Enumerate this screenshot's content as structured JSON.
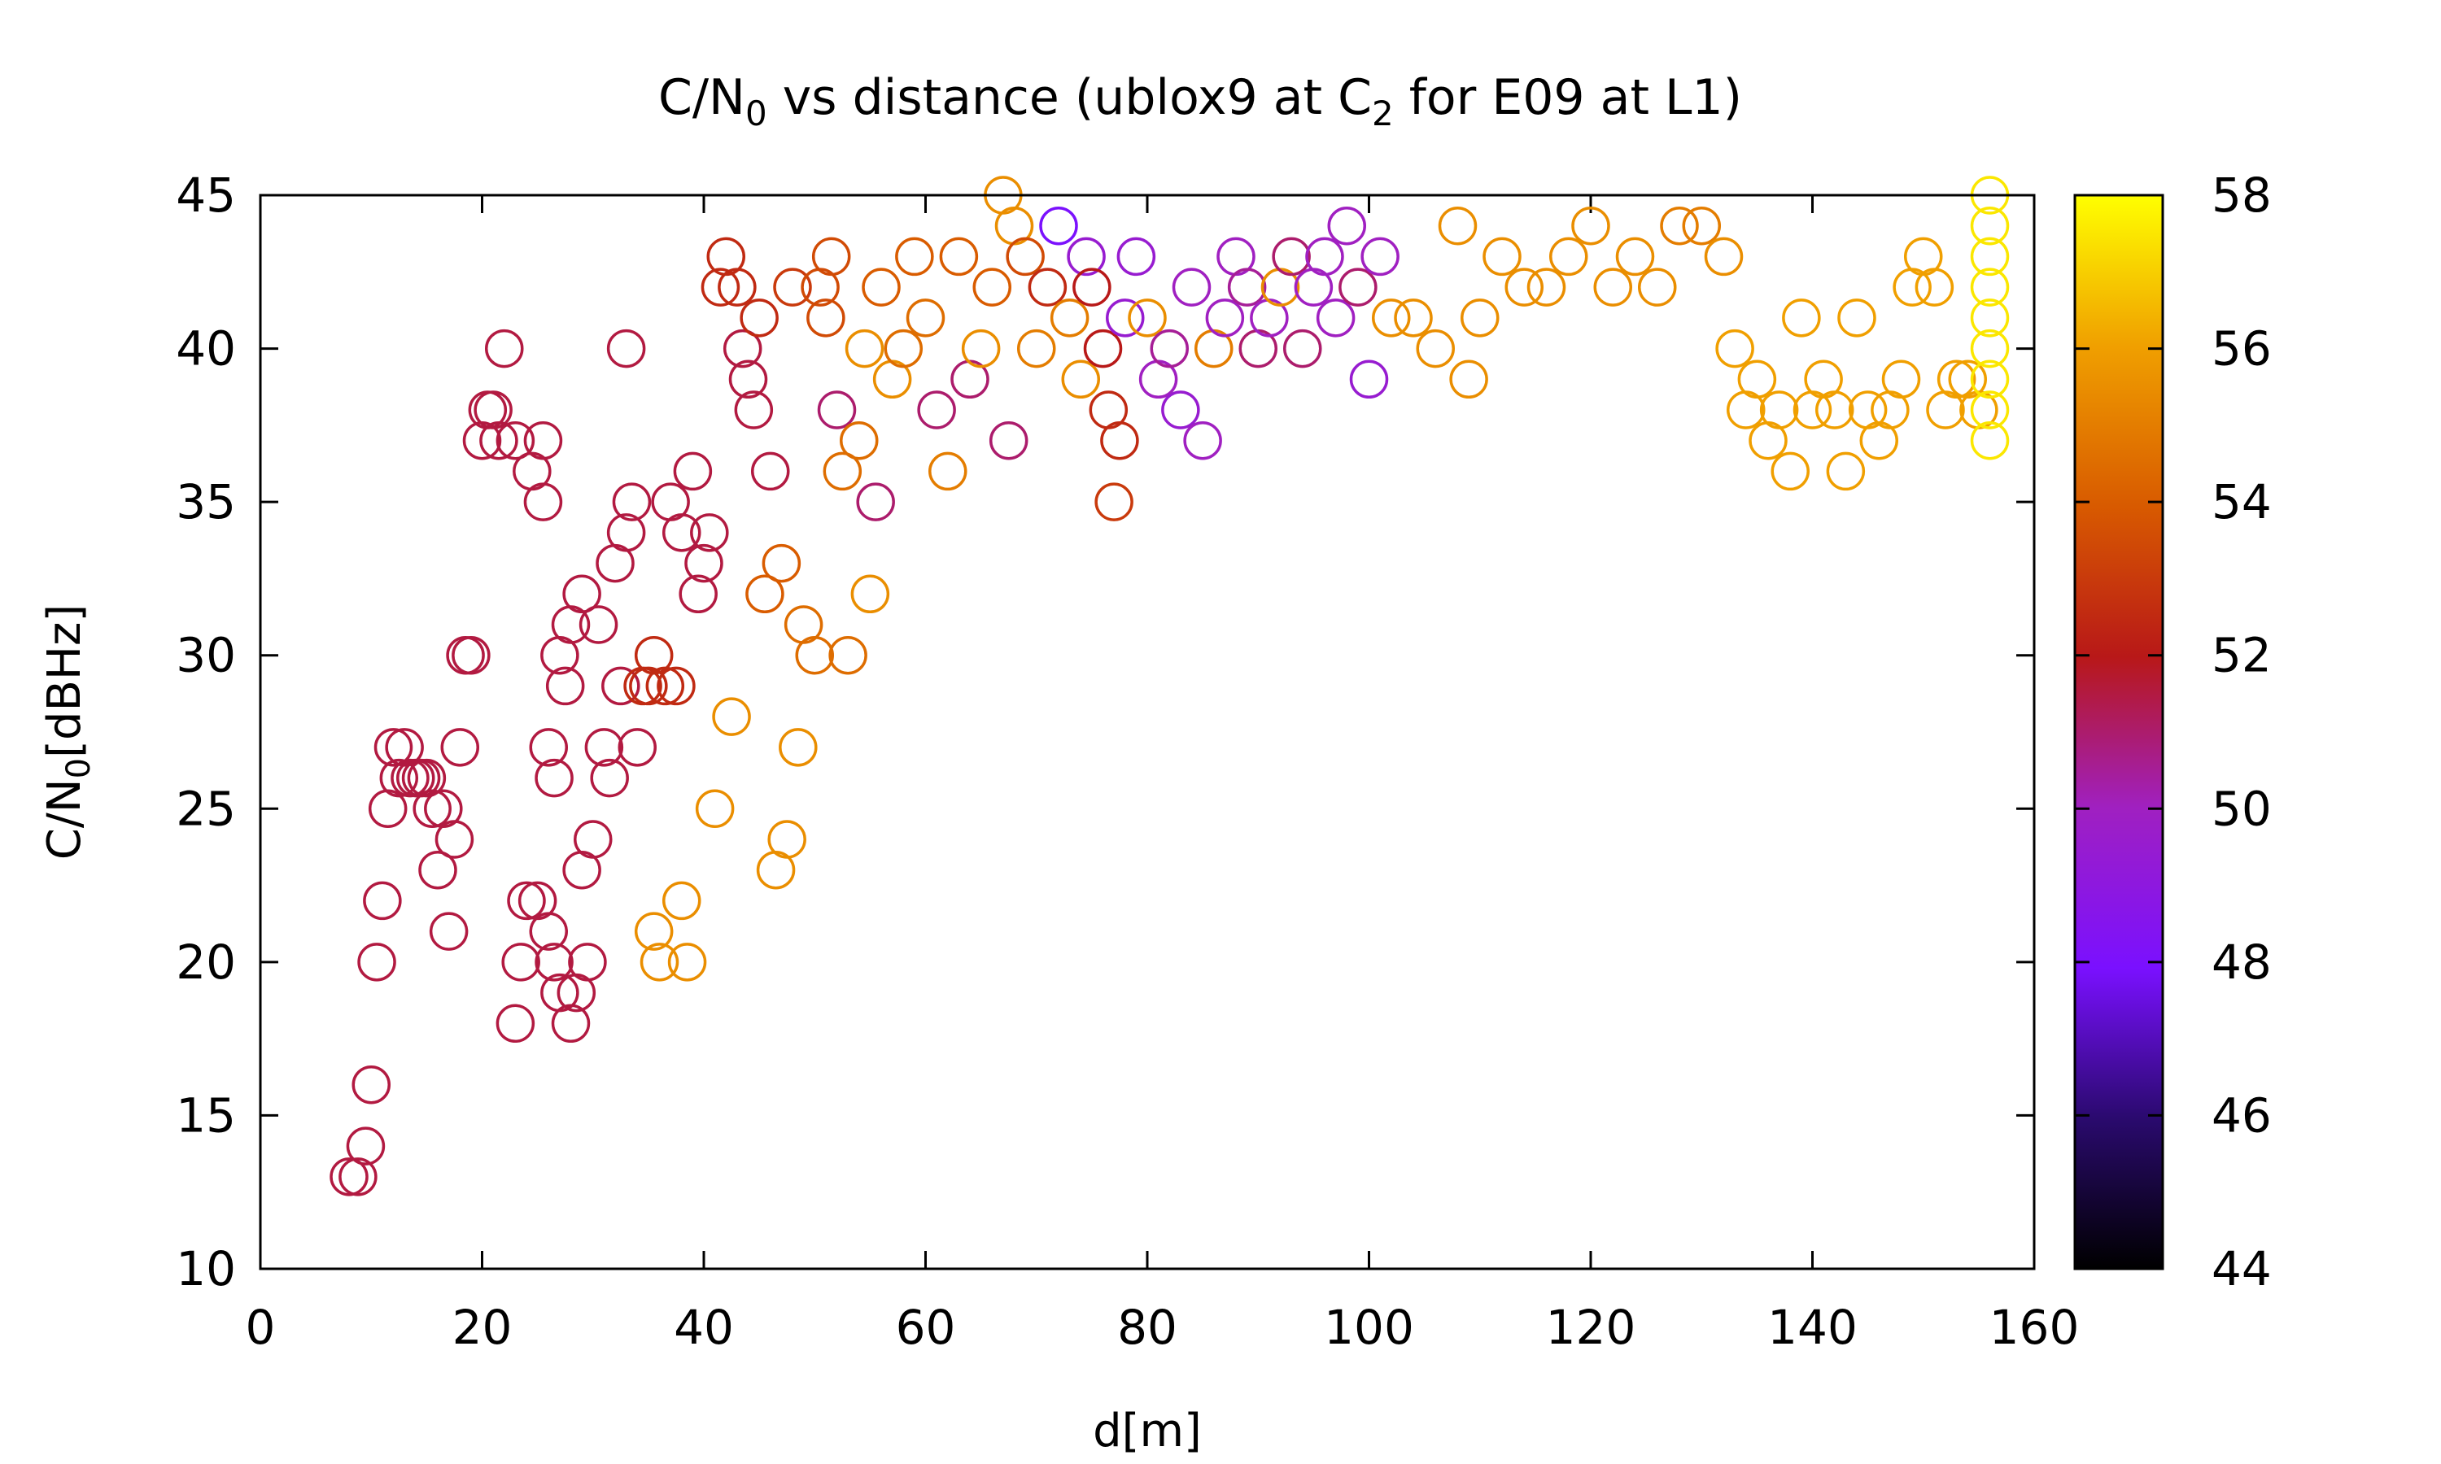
{
  "chart_data": {
    "type": "scatter",
    "title": {
      "main": "C/N",
      "sub0": "0",
      "mid": " vs distance (ublox9 at C",
      "sub2": "2",
      "end": " for E09 at L1)"
    },
    "xlabel": "d[m]",
    "ylabel": {
      "main": "C/N",
      "sub": "0",
      "end": "[dBHz]"
    },
    "xlim": [
      0,
      160
    ],
    "ylim": [
      10,
      45
    ],
    "xticks": [
      "0",
      "20",
      "40",
      "60",
      "80",
      "100",
      "120",
      "140",
      "160"
    ],
    "yticks": [
      "10",
      "15",
      "20",
      "25",
      "30",
      "35",
      "40",
      "45"
    ],
    "colorbar": {
      "range": [
        44,
        58
      ],
      "ticks": [
        "44",
        "46",
        "48",
        "50",
        "52",
        "54",
        "56",
        "58"
      ],
      "palette": "black-blue-purple-red-orange-yellow"
    },
    "marker": "open-circle",
    "grid": false,
    "legend": "none",
    "points": [
      [
        8.0,
        13,
        51.5
      ],
      [
        8.8,
        13,
        51.5
      ],
      [
        9.5,
        14,
        51.5
      ],
      [
        10.0,
        16,
        51.5
      ],
      [
        10.5,
        20,
        51.5
      ],
      [
        11.0,
        22,
        51.5
      ],
      [
        11.5,
        25,
        51.5
      ],
      [
        12.0,
        27,
        51.5
      ],
      [
        12.5,
        26,
        51.5
      ],
      [
        13.0,
        27,
        51.5
      ],
      [
        13.5,
        26,
        51.5
      ],
      [
        14.0,
        26,
        51.5
      ],
      [
        14.5,
        26,
        51.5
      ],
      [
        15.0,
        26,
        51.5
      ],
      [
        15.5,
        25,
        51.5
      ],
      [
        16.0,
        23,
        51.5
      ],
      [
        16.5,
        25,
        51.5
      ],
      [
        17.0,
        21,
        51.5
      ],
      [
        17.5,
        24,
        51.5
      ],
      [
        18.0,
        27,
        51.5
      ],
      [
        18.5,
        30,
        51.5
      ],
      [
        19.0,
        30,
        51.5
      ],
      [
        20.0,
        37,
        51.5
      ],
      [
        20.5,
        38,
        51.5
      ],
      [
        21.0,
        38,
        51.5
      ],
      [
        21.5,
        37,
        51.5
      ],
      [
        22.0,
        40,
        51.5
      ],
      [
        23.0,
        37,
        51.5
      ],
      [
        23.0,
        18,
        51.5
      ],
      [
        23.5,
        20,
        51.5
      ],
      [
        24.0,
        22,
        51.5
      ],
      [
        24.5,
        36,
        51.5
      ],
      [
        25.0,
        22,
        51.5
      ],
      [
        25.5,
        37,
        51.5
      ],
      [
        25.5,
        35,
        51.5
      ],
      [
        26.0,
        27,
        51.5
      ],
      [
        26.0,
        21,
        51.5
      ],
      [
        26.5,
        20,
        51.5
      ],
      [
        26.5,
        26,
        51.5
      ],
      [
        27.0,
        19,
        51.5
      ],
      [
        27.0,
        30,
        51.5
      ],
      [
        27.5,
        29,
        51.5
      ],
      [
        28.0,
        18,
        51.5
      ],
      [
        28.0,
        31,
        51.5
      ],
      [
        28.5,
        19,
        51.5
      ],
      [
        29.0,
        32,
        51.5
      ],
      [
        29.0,
        23,
        51.5
      ],
      [
        29.5,
        20,
        51.5
      ],
      [
        30.0,
        24,
        51.5
      ],
      [
        30.5,
        31,
        51.5
      ],
      [
        31.0,
        27,
        51.5
      ],
      [
        31.5,
        26,
        51.5
      ],
      [
        32.0,
        33,
        51.5
      ],
      [
        32.5,
        29,
        51.5
      ],
      [
        33.0,
        34,
        51.5
      ],
      [
        33.0,
        40,
        51.5
      ],
      [
        33.5,
        35,
        51.5
      ],
      [
        34.0,
        27,
        51.5
      ],
      [
        34.5,
        29,
        52.5
      ],
      [
        35.0,
        29,
        52.5
      ],
      [
        35.5,
        30,
        52.5
      ],
      [
        35.5,
        21,
        55.5
      ],
      [
        36.0,
        20,
        55.5
      ],
      [
        36.5,
        29,
        52.5
      ],
      [
        37.0,
        35,
        51.5
      ],
      [
        37.5,
        29,
        52.5
      ],
      [
        38.0,
        34,
        51.5
      ],
      [
        38.0,
        22,
        55.5
      ],
      [
        38.5,
        20,
        55.5
      ],
      [
        39.0,
        36,
        51.5
      ],
      [
        39.5,
        32,
        51.5
      ],
      [
        40.0,
        33,
        51.5
      ],
      [
        40.5,
        34,
        51.5
      ],
      [
        41.0,
        25,
        55.5
      ],
      [
        41.5,
        42,
        52.5
      ],
      [
        42.0,
        43,
        52.5
      ],
      [
        42.5,
        28,
        55.5
      ],
      [
        43.0,
        42,
        52.5
      ],
      [
        43.5,
        40,
        51.5
      ],
      [
        44.0,
        39,
        51.5
      ],
      [
        44.5,
        38,
        51.5
      ],
      [
        45.0,
        41,
        52.5
      ],
      [
        45.5,
        32,
        54
      ],
      [
        46.0,
        36,
        51.5
      ],
      [
        46.5,
        23,
        55.5
      ],
      [
        47.0,
        33,
        54
      ],
      [
        47.5,
        24,
        55.5
      ],
      [
        48.0,
        42,
        53
      ],
      [
        48.5,
        27,
        55.5
      ],
      [
        49.0,
        31,
        54.5
      ],
      [
        50.0,
        30,
        54.5
      ],
      [
        50.5,
        42,
        53.5
      ],
      [
        51.0,
        41,
        53.5
      ],
      [
        51.5,
        43,
        53.5
      ],
      [
        52.0,
        38,
        51
      ],
      [
        52.5,
        36,
        54.5
      ],
      [
        53.0,
        30,
        54.5
      ],
      [
        54.0,
        37,
        54.5
      ],
      [
        54.5,
        40,
        55.5
      ],
      [
        55.0,
        32,
        55.5
      ],
      [
        55.5,
        35,
        51
      ],
      [
        56.0,
        42,
        54
      ],
      [
        57.0,
        39,
        55.5
      ],
      [
        58.0,
        40,
        54.5
      ],
      [
        59.0,
        43,
        54
      ],
      [
        60.0,
        41,
        54.5
      ],
      [
        61.0,
        38,
        51
      ],
      [
        62.0,
        36,
        55
      ],
      [
        63.0,
        43,
        54
      ],
      [
        64.0,
        39,
        51
      ],
      [
        65.0,
        40,
        55.5
      ],
      [
        66.0,
        42,
        54
      ],
      [
        67.0,
        45,
        55.5
      ],
      [
        67.5,
        37,
        51
      ],
      [
        68.0,
        44,
        55.5
      ],
      [
        69.0,
        43,
        53.5
      ],
      [
        70.0,
        40,
        55
      ],
      [
        71.0,
        42,
        52.5
      ],
      [
        72.0,
        44,
        48
      ],
      [
        73.0,
        41,
        55
      ],
      [
        74.0,
        39,
        55.5
      ],
      [
        74.5,
        43,
        49.5
      ],
      [
        75.0,
        42,
        52
      ],
      [
        76.0,
        40,
        52
      ],
      [
        76.5,
        38,
        52.5
      ],
      [
        77.0,
        35,
        53
      ],
      [
        77.5,
        37,
        52.5
      ],
      [
        78.0,
        41,
        49.5
      ],
      [
        79.0,
        43,
        49.5
      ],
      [
        80.0,
        41,
        55.5
      ],
      [
        81.0,
        39,
        50
      ],
      [
        82.0,
        40,
        50.5
      ],
      [
        83.0,
        38,
        49.5
      ],
      [
        84.0,
        42,
        50
      ],
      [
        85.0,
        37,
        50
      ],
      [
        86.0,
        40,
        55
      ],
      [
        87.0,
        41,
        50
      ],
      [
        88.0,
        43,
        50
      ],
      [
        89.0,
        42,
        50.5
      ],
      [
        90.0,
        40,
        51
      ],
      [
        91.0,
        41,
        50
      ],
      [
        92.0,
        42,
        55.5
      ],
      [
        93.0,
        43,
        51
      ],
      [
        94.0,
        40,
        51
      ],
      [
        95.0,
        42,
        50
      ],
      [
        96.0,
        43,
        50
      ],
      [
        97.0,
        41,
        50
      ],
      [
        98.0,
        44,
        50
      ],
      [
        99.0,
        42,
        51
      ],
      [
        100.0,
        39,
        49.5
      ],
      [
        101.0,
        43,
        50
      ],
      [
        102.0,
        41,
        55.5
      ],
      [
        104.0,
        41,
        55.5
      ],
      [
        106.0,
        40,
        55.5
      ],
      [
        108.0,
        44,
        55.5
      ],
      [
        109.0,
        39,
        55.5
      ],
      [
        110.0,
        41,
        55.5
      ],
      [
        112.0,
        43,
        55.5
      ],
      [
        114.0,
        42,
        55.5
      ],
      [
        116.0,
        42,
        55.5
      ],
      [
        118.0,
        43,
        55.5
      ],
      [
        120.0,
        44,
        55.5
      ],
      [
        122.0,
        42,
        55.5
      ],
      [
        124.0,
        43,
        55.5
      ],
      [
        126.0,
        42,
        55.5
      ],
      [
        128.0,
        44,
        55
      ],
      [
        130.0,
        44,
        55
      ],
      [
        132.0,
        43,
        55.5
      ],
      [
        133.0,
        40,
        56
      ],
      [
        134.0,
        38,
        56
      ],
      [
        135.0,
        39,
        56
      ],
      [
        136.0,
        37,
        56
      ],
      [
        137.0,
        38,
        56
      ],
      [
        138.0,
        36,
        56
      ],
      [
        139.0,
        41,
        56
      ],
      [
        140.0,
        38,
        56
      ],
      [
        141.0,
        39,
        56
      ],
      [
        142.0,
        38,
        56
      ],
      [
        143.0,
        36,
        56
      ],
      [
        144.0,
        41,
        56
      ],
      [
        145.0,
        38,
        56
      ],
      [
        146.0,
        37,
        56
      ],
      [
        147.0,
        38,
        56
      ],
      [
        148.0,
        39,
        56
      ],
      [
        149.0,
        42,
        56
      ],
      [
        150.0,
        43,
        56
      ],
      [
        151.0,
        42,
        56
      ],
      [
        152.0,
        38,
        56
      ],
      [
        153.0,
        39,
        56
      ],
      [
        154.0,
        39,
        56
      ],
      [
        155.0,
        38,
        56
      ],
      [
        156.0,
        45,
        57.5
      ],
      [
        156.0,
        44,
        57.5
      ],
      [
        156.0,
        43,
        57.5
      ],
      [
        156.0,
        42,
        57.5
      ],
      [
        156.0,
        41,
        57.5
      ],
      [
        156.0,
        40,
        57.5
      ],
      [
        156.0,
        39,
        57.5
      ],
      [
        156.0,
        38,
        57.5
      ],
      [
        156.0,
        37,
        57.5
      ]
    ]
  }
}
